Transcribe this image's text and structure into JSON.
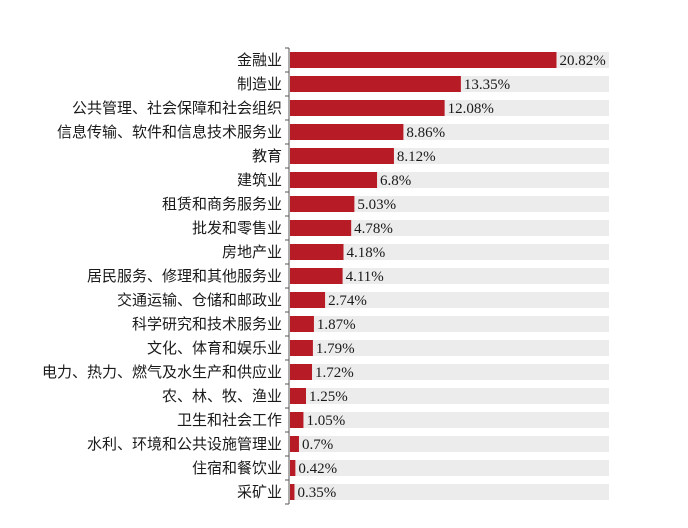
{
  "chart_data": {
    "type": "bar",
    "orientation": "horizontal",
    "title": "",
    "xlabel": "",
    "ylabel": "",
    "xlim": [
      0,
      25
    ],
    "grid": false,
    "legend": "none",
    "colors": {
      "bar": "#b71c26",
      "track": "#ececec",
      "axis": "#555555",
      "text": "#1a1a1a"
    },
    "categories": [
      "金融业",
      "制造业",
      "公共管理、社会保障和社会组织",
      "信息传输、软件和信息技术服务业",
      "教育",
      "建筑业",
      "租赁和商务服务业",
      "批发和零售业",
      "房地产业",
      "居民服务、修理和其他服务业",
      "交通运输、仓储和邮政业",
      "科学研究和技术服务业",
      "文化、体育和娱乐业",
      "电力、热力、燃气及水生产和供应业",
      "农、林、牧、渔业",
      "卫生和社会工作",
      "水利、环境和公共设施管理业",
      "住宿和餐饮业",
      "采矿业"
    ],
    "values": [
      20.82,
      13.35,
      12.08,
      8.86,
      8.12,
      6.8,
      5.03,
      4.78,
      4.18,
      4.11,
      2.74,
      1.87,
      1.79,
      1.72,
      1.25,
      1.05,
      0.7,
      0.42,
      0.35
    ],
    "value_labels": [
      "20.82%",
      "13.35%",
      "12.08%",
      "8.86%",
      "8.12%",
      "6.8%",
      "5.03%",
      "4.78%",
      "4.18%",
      "4.11%",
      "2.74%",
      "1.87%",
      "1.79%",
      "1.72%",
      "1.25%",
      "1.05%",
      "0.7%",
      "0.42%",
      "0.35%"
    ]
  }
}
